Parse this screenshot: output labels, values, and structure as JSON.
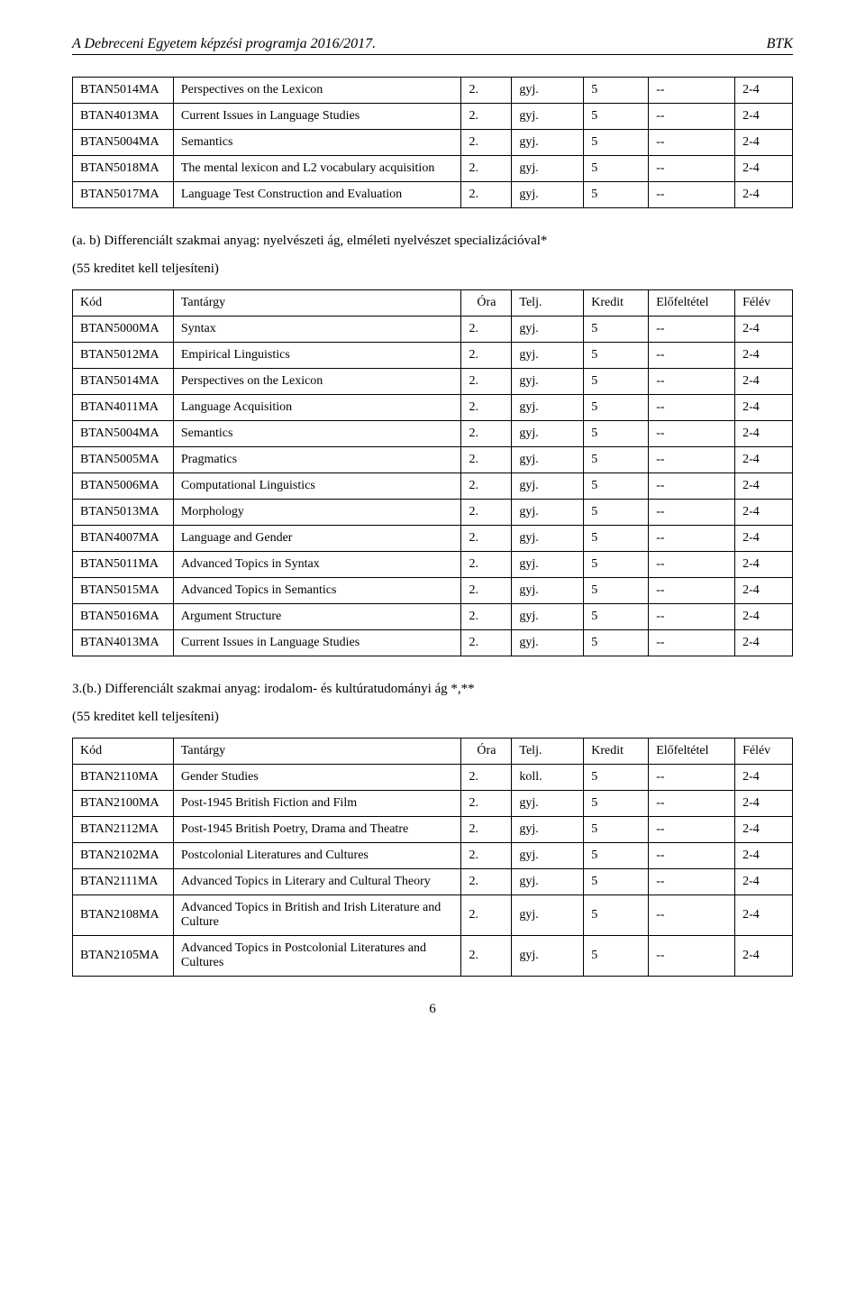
{
  "header": {
    "left": "A Debreceni Egyetem képzési programja 2016/2017.",
    "right": "BTK"
  },
  "table1": {
    "rows": [
      {
        "code": "BTAN5014MA",
        "subject": "Perspectives on the Lexicon",
        "ora": "2.",
        "telj": "gyj.",
        "kredit": "5",
        "pre": "--",
        "sem": "2-4"
      },
      {
        "code": "BTAN4013MA",
        "subject": "Current Issues in Language Studies",
        "ora": "2.",
        "telj": "gyj.",
        "kredit": "5",
        "pre": "--",
        "sem": "2-4"
      },
      {
        "code": "BTAN5004MA",
        "subject": "Semantics",
        "ora": "2.",
        "telj": "gyj.",
        "kredit": "5",
        "pre": "--",
        "sem": "2-4"
      },
      {
        "code": "BTAN5018MA",
        "subject": "The mental lexicon and L2 vocabulary acquisition",
        "ora": "2.",
        "telj": "gyj.",
        "kredit": "5",
        "pre": "--",
        "sem": "2-4"
      },
      {
        "code": "BTAN5017MA",
        "subject": "Language Test Construction and Evaluation",
        "ora": "2.",
        "telj": "gyj.",
        "kredit": "5",
        "pre": "--",
        "sem": "2-4"
      }
    ]
  },
  "section2": {
    "heading": "(a. b) Differenciált szakmai anyag: nyelvészeti ág, elméleti nyelvészet specializációval*",
    "subheading": "(55 kreditet kell teljesíteni)",
    "columns": {
      "c1": "Kód",
      "c2": "Tantárgy",
      "c3": "Óra",
      "c4": "Telj.",
      "c5": "Kredit",
      "c6": "Előfeltétel",
      "c7": "Félév"
    },
    "rows": [
      {
        "code": "BTAN5000MA",
        "subject": "Syntax",
        "ora": "2.",
        "telj": "gyj.",
        "kredit": "5",
        "pre": "--",
        "sem": "2-4"
      },
      {
        "code": "BTAN5012MA",
        "subject": "Empirical Linguistics",
        "ora": "2.",
        "telj": "gyj.",
        "kredit": "5",
        "pre": "--",
        "sem": "2-4"
      },
      {
        "code": "BTAN5014MA",
        "subject": "Perspectives on the Lexicon",
        "ora": "2.",
        "telj": "gyj.",
        "kredit": "5",
        "pre": "--",
        "sem": "2-4"
      },
      {
        "code": "BTAN4011MA",
        "subject": "Language Acquisition",
        "ora": "2.",
        "telj": "gyj.",
        "kredit": "5",
        "pre": "--",
        "sem": "2-4"
      },
      {
        "code": "BTAN5004MA",
        "subject": "Semantics",
        "ora": "2.",
        "telj": "gyj.",
        "kredit": "5",
        "pre": "--",
        "sem": "2-4"
      },
      {
        "code": "BTAN5005MA",
        "subject": "Pragmatics",
        "ora": "2.",
        "telj": "gyj.",
        "kredit": "5",
        "pre": "--",
        "sem": "2-4"
      },
      {
        "code": "BTAN5006MA",
        "subject": "Computational Linguistics",
        "ora": "2.",
        "telj": "gyj.",
        "kredit": "5",
        "pre": "--",
        "sem": "2-4"
      },
      {
        "code": "BTAN5013MA",
        "subject": "Morphology",
        "ora": "2.",
        "telj": "gyj.",
        "kredit": "5",
        "pre": "--",
        "sem": "2-4"
      },
      {
        "code": "BTAN4007MA",
        "subject": "Language and Gender",
        "ora": "2.",
        "telj": "gyj.",
        "kredit": "5",
        "pre": "--",
        "sem": "2-4"
      },
      {
        "code": "BTAN5011MA",
        "subject": "Advanced Topics in Syntax",
        "ora": "2.",
        "telj": "gyj.",
        "kredit": "5",
        "pre": "--",
        "sem": "2-4"
      },
      {
        "code": "BTAN5015MA",
        "subject": "Advanced Topics in Semantics",
        "ora": "2.",
        "telj": "gyj.",
        "kredit": "5",
        "pre": "--",
        "sem": "2-4"
      },
      {
        "code": "BTAN5016MA",
        "subject": "Argument Structure",
        "ora": "2.",
        "telj": "gyj.",
        "kredit": "5",
        "pre": "--",
        "sem": "2-4"
      },
      {
        "code": "BTAN4013MA",
        "subject": "Current Issues in Language Studies",
        "ora": "2.",
        "telj": "gyj.",
        "kredit": "5",
        "pre": "--",
        "sem": "2-4"
      }
    ]
  },
  "section3": {
    "heading": "3.(b.) Differenciált szakmai anyag: irodalom- és kultúratudományi ág *,**",
    "subheading": "(55 kreditet kell teljesíteni)",
    "columns": {
      "c1": "Kód",
      "c2": "Tantárgy",
      "c3": "Óra",
      "c4": "Telj.",
      "c5": "Kredit",
      "c6": "Előfeltétel",
      "c7": "Félév"
    },
    "rows": [
      {
        "code": "BTAN2110MA",
        "subject": "Gender Studies",
        "ora": "2.",
        "telj": "koll.",
        "kredit": "5",
        "pre": "--",
        "sem": "2-4"
      },
      {
        "code": "BTAN2100MA",
        "subject": "Post-1945 British Fiction and Film",
        "ora": "2.",
        "telj": "gyj.",
        "kredit": "5",
        "pre": "--",
        "sem": "2-4"
      },
      {
        "code": "BTAN2112MA",
        "subject": "Post-1945 British Poetry, Drama and Theatre",
        "ora": "2.",
        "telj": "gyj.",
        "kredit": "5",
        "pre": "--",
        "sem": "2-4"
      },
      {
        "code": "BTAN2102MA",
        "subject": "Postcolonial Literatures and Cultures",
        "ora": "2.",
        "telj": "gyj.",
        "kredit": "5",
        "pre": "--",
        "sem": "2-4"
      },
      {
        "code": "BTAN2111MA",
        "subject": "Advanced Topics in Literary and Cultural Theory",
        "ora": "2.",
        "telj": "gyj.",
        "kredit": "5",
        "pre": "--",
        "sem": "2-4"
      },
      {
        "code": "BTAN2108MA",
        "subject": "Advanced Topics in British and Irish Literature and Culture",
        "ora": "2.",
        "telj": "gyj.",
        "kredit": "5",
        "pre": "--",
        "sem": "2-4"
      },
      {
        "code": "BTAN2105MA",
        "subject": "Advanced Topics in Postcolonial Literatures and Cultures",
        "ora": "2.",
        "telj": "gyj.",
        "kredit": "5",
        "pre": "--",
        "sem": "2-4"
      }
    ]
  },
  "pageNumber": "6"
}
